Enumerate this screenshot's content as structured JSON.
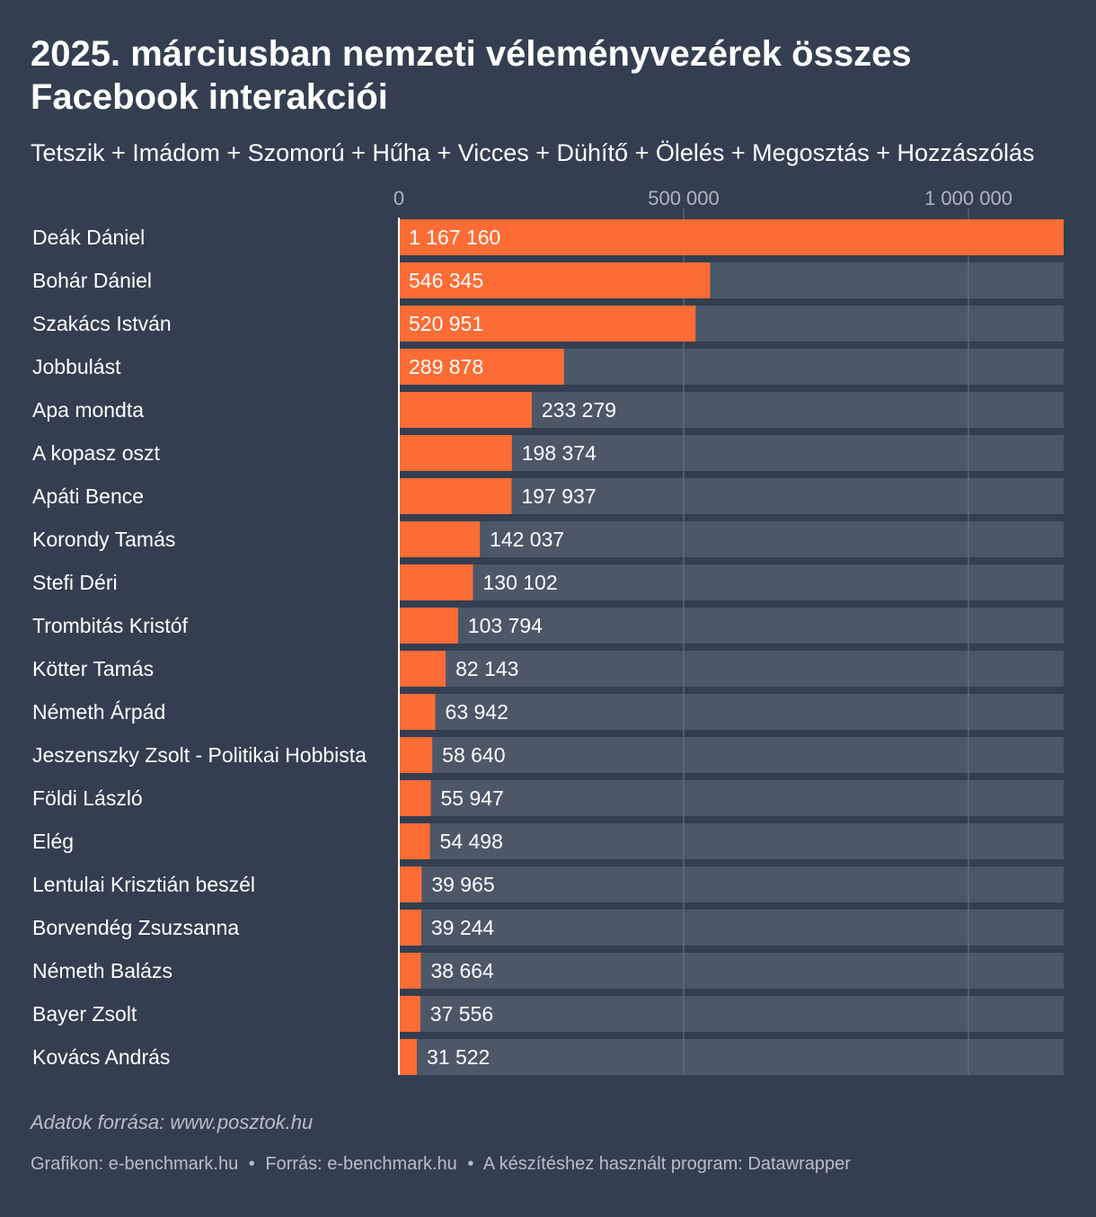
{
  "chart_data": {
    "type": "bar",
    "orientation": "horizontal",
    "title": "2025. márciusban nemzeti véleményvezérek összes Facebook interakciói",
    "subtitle": "Tetszik + Imádom + Szomorú + Hűha + Vicces + Dühítő + Ölelés + Megosztás + Hozzászólás",
    "categories": [
      "Deák Dániel",
      "Bohár Dániel",
      "Szakács István",
      "Jobbulást",
      "Apa mondta",
      "A kopasz oszt",
      "Apáti Bence",
      "Korondy Tamás",
      "Stefi Déri",
      "Trombitás Kristóf",
      "Kötter Tamás",
      "Németh Árpád",
      "Jeszenszky Zsolt - Politikai Hobbista",
      "Földi László",
      "Elég",
      "Lentulai Krisztián beszél",
      "Borvendég Zsuzsanna",
      "Németh Balázs",
      "Bayer Zsolt",
      "Kovács András"
    ],
    "values": [
      1167160,
      546345,
      520951,
      289878,
      233279,
      198374,
      197937,
      142037,
      130102,
      103794,
      82143,
      63942,
      58640,
      55947,
      54498,
      39965,
      39244,
      38664,
      37556,
      31522
    ],
    "value_labels": [
      "1 167 160",
      "546 345",
      "520 951",
      "289 878",
      "233 279",
      "198 374",
      "197 937",
      "142 037",
      "130 102",
      "103 794",
      "82 143",
      "63 942",
      "58 640",
      "55 947",
      "54 498",
      "39 965",
      "39 244",
      "38 664",
      "37 556",
      "31 522"
    ],
    "xlim": [
      0,
      1167160
    ],
    "ticks": [
      0,
      500000,
      1000000
    ],
    "tick_labels": [
      "0",
      "500 000",
      "1 000 000"
    ],
    "grid": true
  },
  "colors": {
    "background": "#333f50",
    "bar": "#fe6c35",
    "track": "#4c5768",
    "gridline": "#6b7586",
    "tick_text": "#aeb5bf",
    "text": "#ffffff",
    "muted": "#b8bec8"
  },
  "source_note": "Adatok forrása: www.posztok.hu",
  "footer": {
    "graphic": "Grafikon: e-benchmark.hu",
    "source": "Forrás: e-benchmark.hu",
    "tool": "A készítéshez használt program: Datawrapper",
    "separator": "•"
  }
}
